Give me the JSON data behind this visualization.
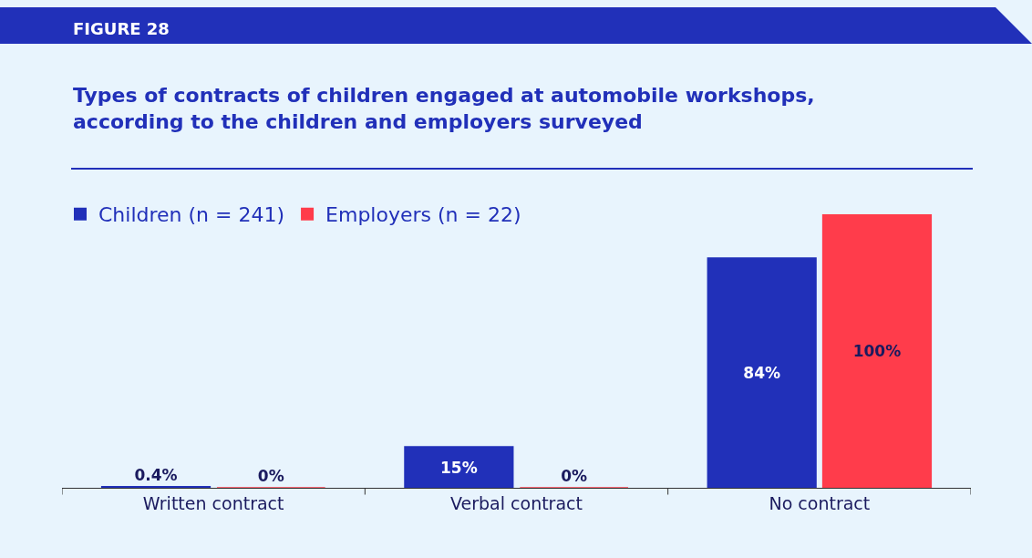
{
  "chart_data": {
    "type": "bar",
    "title": "Types of contracts of children engaged at automobile workshops, according to the children and employers surveyed",
    "subtitle": "FIGURE 28",
    "categories": [
      "Written contract",
      "Verbal contract",
      "No contract"
    ],
    "series": [
      {
        "name": "Children (n = 241)",
        "color": "#2130b9",
        "values": [
          0.4,
          15,
          84
        ],
        "value_labels": [
          "0.4%",
          "15%",
          "84%"
        ]
      },
      {
        "name": "Employers (n = 22)",
        "color": "#ff3c4b",
        "values": [
          0,
          0,
          100
        ],
        "value_labels": [
          "0%",
          "0%",
          "100%"
        ]
      }
    ],
    "legend": "top left",
    "grid": false
  }
}
